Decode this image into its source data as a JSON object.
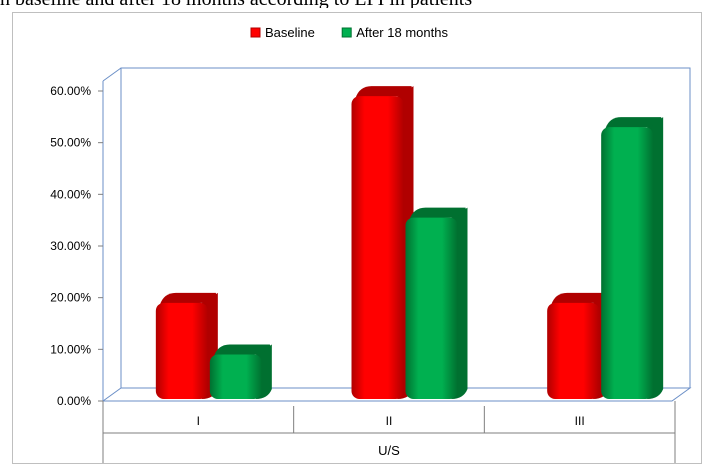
{
  "caption_fragment": "n baseline and after 18 months according to LPI in patients",
  "chart_data": {
    "type": "bar",
    "categories": [
      "I",
      "II",
      "III"
    ],
    "series": [
      {
        "name": "Baseline",
        "values": [
          19.0,
          59.0,
          19.0
        ],
        "color": "#ff0000",
        "dark": "#b00000"
      },
      {
        "name": "After 18 months",
        "values": [
          9.0,
          35.5,
          53.0
        ],
        "color": "#00b050",
        "dark": "#007030"
      }
    ],
    "ylim": [
      0,
      60
    ],
    "yticks": [
      0,
      10,
      20,
      30,
      40,
      50,
      60
    ],
    "ytick_labels": [
      "0.00%",
      "10.00%",
      "20.00%",
      "30.00%",
      "40.00%",
      "50.00%",
      "60.00%"
    ],
    "xlabel": "U/S",
    "ylabel": "",
    "legend_position": "top-center",
    "grid": false,
    "style": "3d-cylinder"
  }
}
